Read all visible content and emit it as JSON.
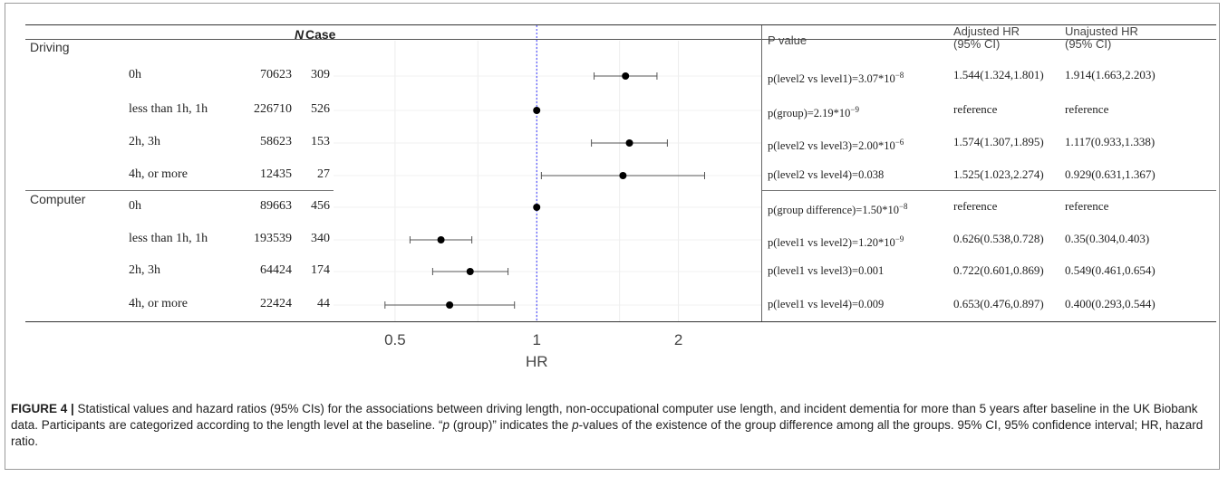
{
  "headers": {
    "n": "N",
    "case": "Case",
    "p_value": "P value",
    "adj_hr_line1": "Adjusted HR",
    "adj_hr_line2": "(95% CI)",
    "unadj_hr_line1": "Unajusted HR",
    "unadj_hr_line2": "(95% CI)"
  },
  "groups": [
    {
      "name": "Driving",
      "rows": [
        {
          "level": "0h",
          "n": "70623",
          "case": "309",
          "p_text": "p(level2 vs level1)=3.07*10",
          "p_exp": "−8",
          "adj": "1.544(1.324,1.801)",
          "unadj": "1.914(1.663,2.203)"
        },
        {
          "level": "less than 1h, 1h",
          "n": "226710",
          "case": "526",
          "p_text": "p(group)=2.19*10",
          "p_exp": "−9",
          "adj": "reference",
          "unadj": "reference"
        },
        {
          "level": "2h, 3h",
          "n": "58623",
          "case": "153",
          "p_text": "p(level2 vs level3)=2.00*10",
          "p_exp": "−6",
          "adj": "1.574(1.307,1.895)",
          "unadj": "1.117(0.933,1.338)"
        },
        {
          "level": "4h, or more",
          "n": "12435",
          "case": "27",
          "p_text": "p(level2 vs level4)=0.038",
          "p_exp": "",
          "adj": "1.525(1.023,2.274)",
          "unadj": "0.929(0.631,1.367)"
        }
      ]
    },
    {
      "name": "Computer",
      "rows": [
        {
          "level": "0h",
          "n": "89663",
          "case": "456",
          "p_text": "p(group difference)=1.50*10",
          "p_exp": "−8",
          "adj": "reference",
          "unadj": "reference"
        },
        {
          "level": "less than 1h, 1h",
          "n": "193539",
          "case": "340",
          "p_text": "p(level1 vs level2)=1.20*10",
          "p_exp": "−9",
          "adj": "0.626(0.538,0.728)",
          "unadj": "0.35(0.304,0.403)"
        },
        {
          "level": "2h, 3h",
          "n": "64424",
          "case": "174",
          "p_text": "p(level1 vs level3)=0.001",
          "p_exp": "",
          "adj": "0.722(0.601,0.869)",
          "unadj": "0.549(0.461,0.654)"
        },
        {
          "level": "4h, or more",
          "n": "22424",
          "case": "44",
          "p_text": "p(level1 vs level4)=0.009",
          "p_exp": "",
          "adj": "0.653(0.476,0.897)",
          "unadj": "0.400(0.293,0.544)"
        }
      ]
    }
  ],
  "caption": {
    "label": "FIGURE 4 |",
    "text_a": " Statistical values and hazard ratios (95% CIs) for the associations between driving length, non-occupational computer use length, and incident dementia for more than 5 years after baseline in the UK Biobank data. Participants are categorized according to the length level at the baseline. “",
    "p_italic": "p",
    "text_b": " (group)” indicates the ",
    "p_italic2": "p",
    "text_c": "-values of the existence of the group difference among all the groups. 95% CI, 95% confidence interval; HR, hazard ratio."
  },
  "chart_data": {
    "type": "scatter",
    "subtype": "forest-plot",
    "xlabel": "HR",
    "x_scale": "log",
    "xlim": [
      0.37,
      3.0
    ],
    "xticks": [
      0.5,
      1,
      2
    ],
    "xtick_labels": [
      "0.5",
      "1",
      "2"
    ],
    "reference_line": 1,
    "reference_line_color": "#3a3aff",
    "categories": [
      "Driving: 0h",
      "Driving: less than 1h, 1h",
      "Driving: 2h, 3h",
      "Driving: 4h, or more",
      "Computer: 0h",
      "Computer: less than 1h, 1h",
      "Computer: 2h, 3h",
      "Computer: 4h, or more"
    ],
    "series": [
      {
        "hr": [
          1.544,
          1.0,
          1.574,
          1.525,
          1.0,
          0.626,
          0.722,
          0.653
        ],
        "lower": [
          1.324,
          null,
          1.307,
          1.023,
          null,
          0.538,
          0.601,
          0.476
        ],
        "upper": [
          1.801,
          null,
          1.895,
          2.274,
          null,
          0.728,
          0.869,
          0.897
        ]
      }
    ],
    "grid": true,
    "point_color": "#000000",
    "ci_color": "#555555"
  }
}
